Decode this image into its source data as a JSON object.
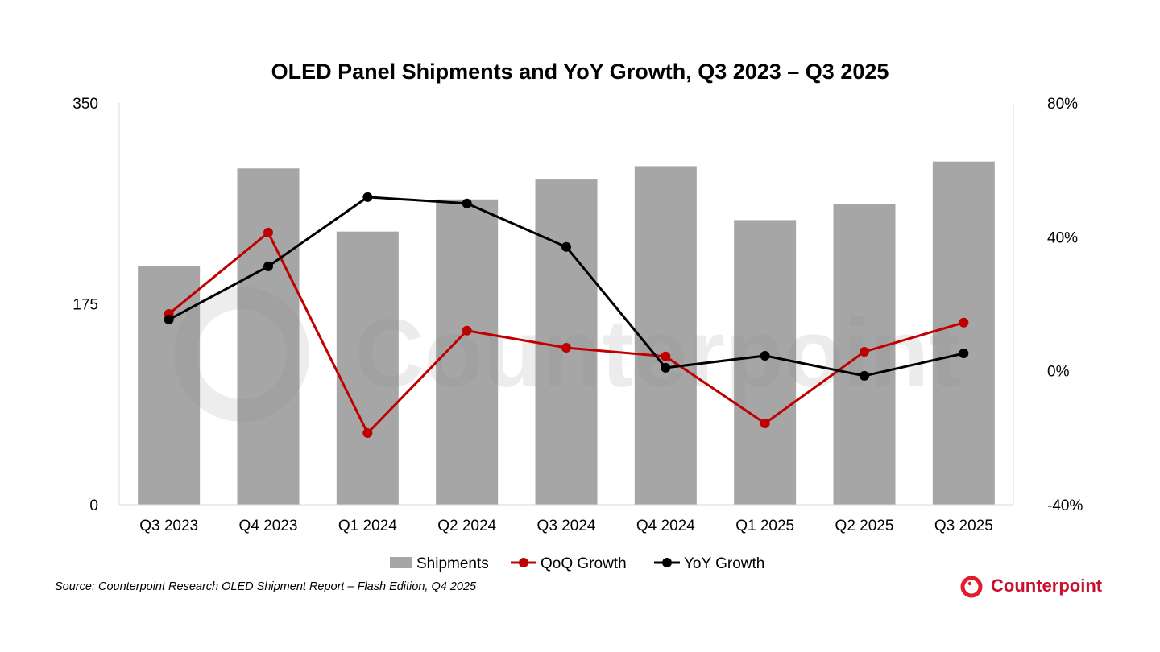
{
  "chart_data": {
    "type": "bar+line",
    "title": "OLED Panel Shipments and YoY Growth, Q3 2023 – Q3 2025",
    "categories": [
      "Q3 2023",
      "Q4 2023",
      "Q1 2024",
      "Q2 2024",
      "Q3 2024",
      "Q4 2024",
      "Q1 2025",
      "Q2 2025",
      "Q3 2025"
    ],
    "series": [
      {
        "name": "Shipments",
        "type": "bar",
        "axis": "left",
        "color": "#a6a6a6",
        "values": [
          208,
          293,
          238,
          266,
          284,
          295,
          248,
          262,
          299
        ]
      },
      {
        "name": "QoQ Growth",
        "type": "line",
        "axis": "right",
        "color": "#c00000",
        "values": [
          17.0,
          41.3,
          -18.6,
          12.0,
          6.9,
          4.3,
          -15.7,
          5.7,
          14.4
        ]
      },
      {
        "name": "YoY Growth",
        "type": "line",
        "axis": "right",
        "color": "#000000",
        "values": [
          15.3,
          31.2,
          51.9,
          50.0,
          37.0,
          0.9,
          4.5,
          -1.5,
          5.2
        ]
      }
    ],
    "left_axis": {
      "ylim": [
        0,
        350
      ],
      "ticks": [
        0,
        175,
        350
      ],
      "tick_labels": [
        "0",
        "175",
        "350"
      ]
    },
    "right_axis": {
      "ylim": [
        -40,
        80
      ],
      "ticks": [
        -40,
        0,
        40,
        80
      ],
      "tick_labels": [
        "-40%",
        "0%",
        "40%",
        "80%"
      ]
    },
    "grid": false,
    "legend": "bottom"
  },
  "source": "Source: Counterpoint Research  OLED Shipment Report – Flash Edition, Q4 2025",
  "logo": {
    "text": "Counterpoint",
    "color": "#e31c2d"
  },
  "watermark": "Counterpoint"
}
